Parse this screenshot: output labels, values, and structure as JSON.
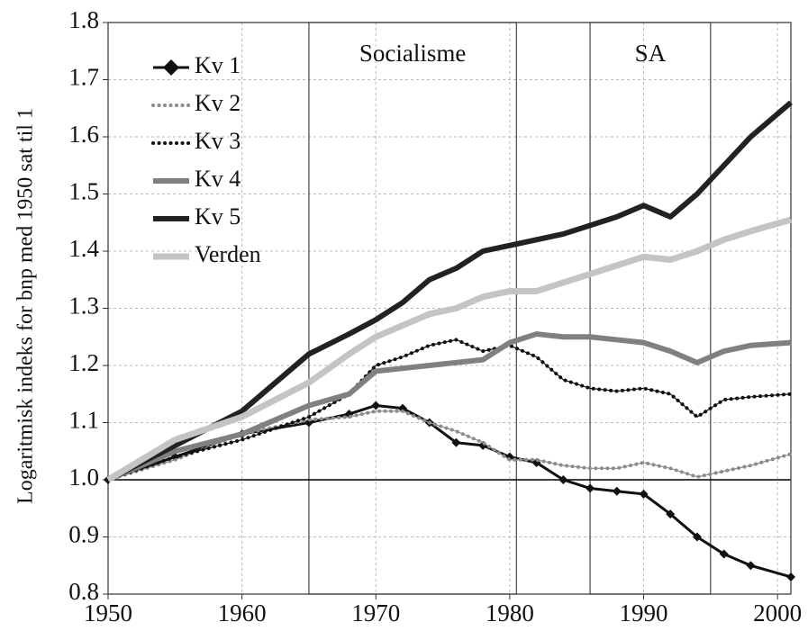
{
  "chart_data": {
    "type": "line",
    "y_label": "Logaritmisk indeks for bnp med 1950 sat til 1",
    "x": [
      1950,
      1955,
      1960,
      1965,
      1968,
      1970,
      1972,
      1974,
      1976,
      1978,
      1980,
      1982,
      1984,
      1986,
      1988,
      1990,
      1992,
      1994,
      1996,
      1998,
      2001
    ],
    "series": [
      {
        "name": "Kv 1",
        "color": "#111111",
        "line_width": 3,
        "marker": "diamond",
        "values": [
          1.0,
          1.04,
          1.08,
          1.1,
          1.115,
          1.13,
          1.125,
          1.1,
          1.065,
          1.06,
          1.04,
          1.03,
          1.0,
          0.985,
          0.98,
          0.975,
          0.94,
          0.9,
          0.87,
          0.85,
          0.83
        ]
      },
      {
        "name": "Kv 2",
        "color": "#8c8c8c",
        "line_width": 4,
        "marker": "dot",
        "values": [
          1.0,
          1.035,
          1.08,
          1.105,
          1.11,
          1.12,
          1.12,
          1.1,
          1.085,
          1.065,
          1.035,
          1.035,
          1.025,
          1.02,
          1.02,
          1.03,
          1.02,
          1.005,
          1.015,
          1.025,
          1.045
        ]
      },
      {
        "name": "Kv 3",
        "color": "#111111",
        "line_width": 4,
        "marker": "dot",
        "values": [
          1.0,
          1.04,
          1.07,
          1.11,
          1.15,
          1.2,
          1.215,
          1.235,
          1.245,
          1.225,
          1.235,
          1.215,
          1.175,
          1.16,
          1.155,
          1.16,
          1.15,
          1.11,
          1.14,
          1.145,
          1.15
        ]
      },
      {
        "name": "Kv 4",
        "color": "#808080",
        "line_width": 6,
        "marker": "none",
        "values": [
          1.0,
          1.05,
          1.08,
          1.13,
          1.15,
          1.19,
          1.195,
          1.2,
          1.205,
          1.21,
          1.24,
          1.255,
          1.25,
          1.25,
          1.245,
          1.24,
          1.225,
          1.205,
          1.225,
          1.235,
          1.24
        ]
      },
      {
        "name": "Kv 5",
        "color": "#222222",
        "line_width": 6,
        "marker": "none",
        "values": [
          1.0,
          1.06,
          1.12,
          1.22,
          1.255,
          1.28,
          1.31,
          1.35,
          1.37,
          1.4,
          1.41,
          1.42,
          1.43,
          1.445,
          1.46,
          1.48,
          1.46,
          1.5,
          1.55,
          1.6,
          1.66
        ]
      },
      {
        "name": "Verden",
        "color": "#c4c4c4",
        "line_width": 7,
        "marker": "none",
        "values": [
          1.0,
          1.07,
          1.11,
          1.17,
          1.22,
          1.25,
          1.27,
          1.29,
          1.3,
          1.32,
          1.33,
          1.33,
          1.345,
          1.36,
          1.375,
          1.39,
          1.385,
          1.4,
          1.42,
          1.435,
          1.455
        ]
      }
    ],
    "periods": [
      {
        "label": "Socialisme",
        "x": [
          1965,
          1980.5
        ]
      },
      {
        "label": "SA",
        "x": [
          1986,
          1995
        ]
      }
    ],
    "reference_line": 1.0,
    "xlim": [
      1950,
      2001
    ],
    "xticks": [
      1950,
      1960,
      1970,
      1980,
      1990,
      2000
    ],
    "ylim": [
      0.8,
      1.8
    ],
    "yticks": [
      0.8,
      0.9,
      {
        "value": 1.0,
        "label": "1.0"
      },
      1.1,
      1.2,
      1.3,
      1.4,
      1.5,
      1.6,
      1.7,
      1.8
    ],
    "grid": true,
    "legend": "top-left"
  }
}
